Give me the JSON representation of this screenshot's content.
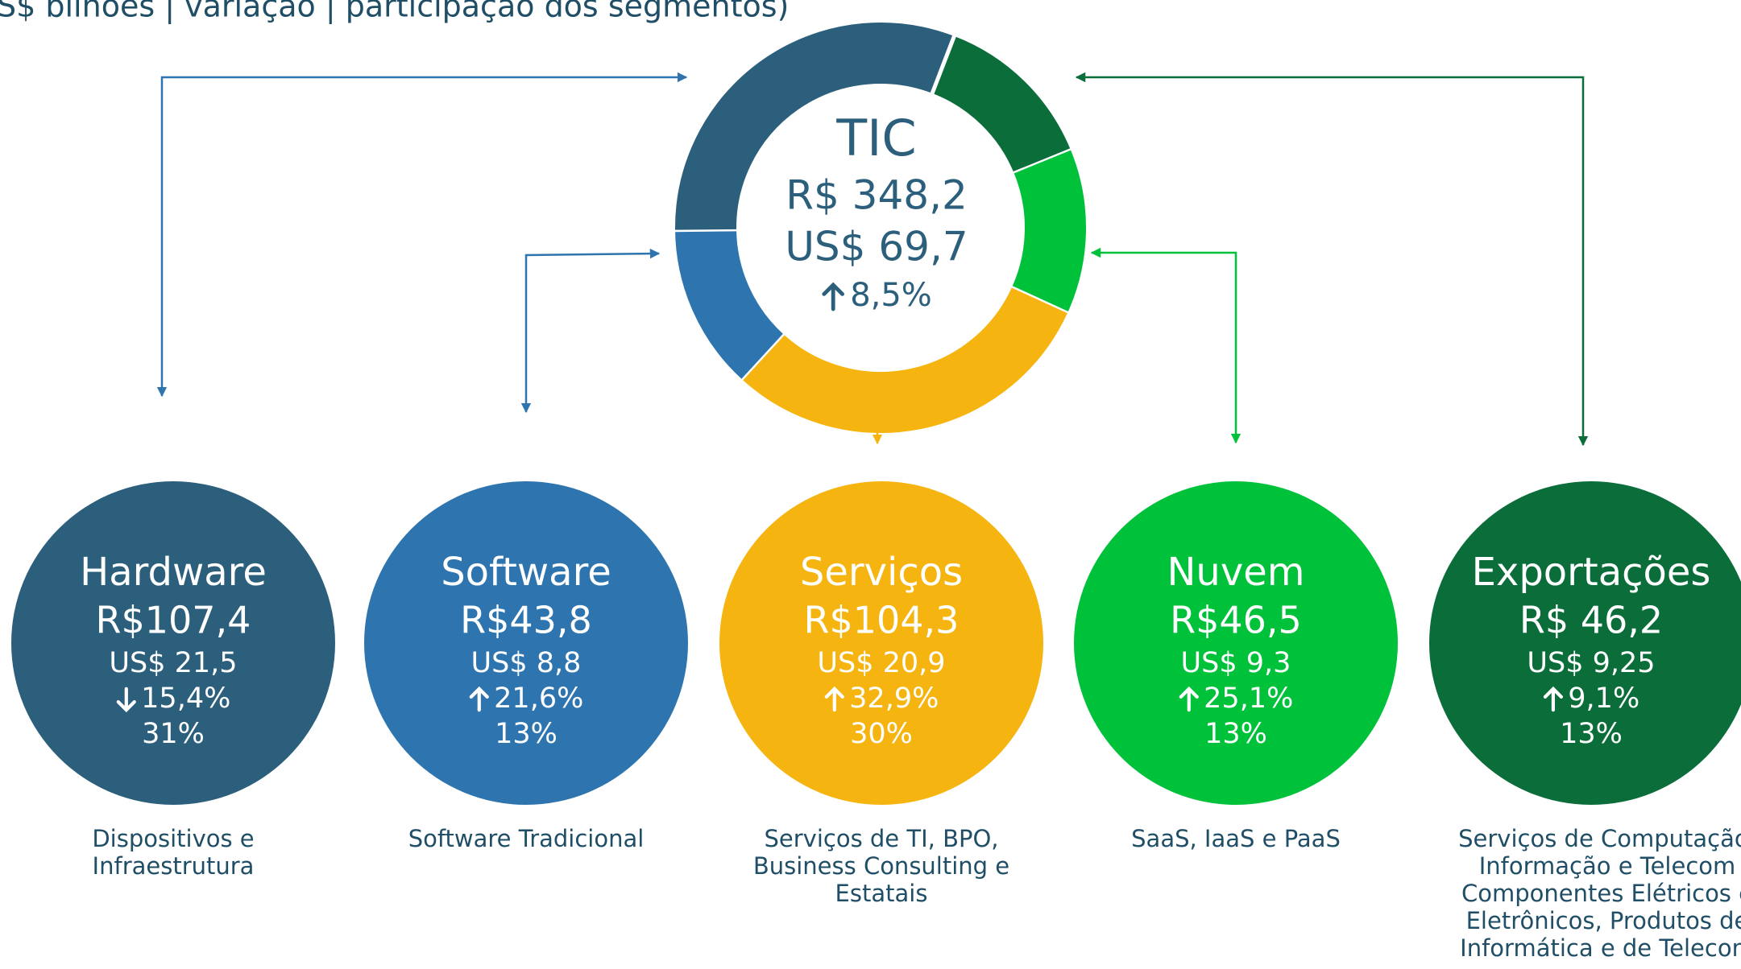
{
  "header": {
    "title": "S$ bilhões | variação | participação dos segmentos)"
  },
  "center": {
    "label": "TIC",
    "brl": "R$ 348,2",
    "usd": "US$ 69,7",
    "change": "8,5%",
    "trend": "up"
  },
  "segments": [
    {
      "name": "Hardware",
      "brl": "R$107,4",
      "usd": "US$ 21,5",
      "change": "15,4%",
      "trend": "down",
      "share": 31,
      "share_label": "31%",
      "color": "#2c5f7c",
      "description": [
        "Dispositivos e",
        "Infraestrutura"
      ]
    },
    {
      "name": "Software",
      "brl": "R$43,8",
      "usd": "US$ 8,8",
      "change": "21,6%",
      "trend": "up",
      "share": 13,
      "share_label": "13%",
      "color": "#2e75b0",
      "description": [
        "Software Tradicional"
      ]
    },
    {
      "name": "Serviços",
      "brl": "R$104,3",
      "usd": "US$ 20,9",
      "change": "32,9%",
      "trend": "up",
      "share": 30,
      "share_label": "30%",
      "color": "#f5b40f",
      "description": [
        "Serviços de TI, BPO,",
        "Business Consulting e",
        "Estatais"
      ]
    },
    {
      "name": "Nuvem",
      "brl": "R$46,5",
      "usd": "US$ 9,3",
      "change": "25,1%",
      "trend": "up",
      "share": 13,
      "share_label": "13%",
      "color": "#00c13a",
      "description": [
        "SaaS, IaaS e PaaS"
      ]
    },
    {
      "name": "Exportações",
      "brl": "R$ 46,2",
      "usd": "US$ 9,25",
      "change": "9,1%",
      "trend": "up",
      "share": 13,
      "share_label": "13%",
      "color": "#0b6e3a",
      "description": [
        "Serviços de Computação,",
        "Informação e Telecom",
        "Componentes Elétricos e",
        "Eletrônicos, Produtos de",
        "Informática e de Telecom"
      ]
    }
  ]
}
